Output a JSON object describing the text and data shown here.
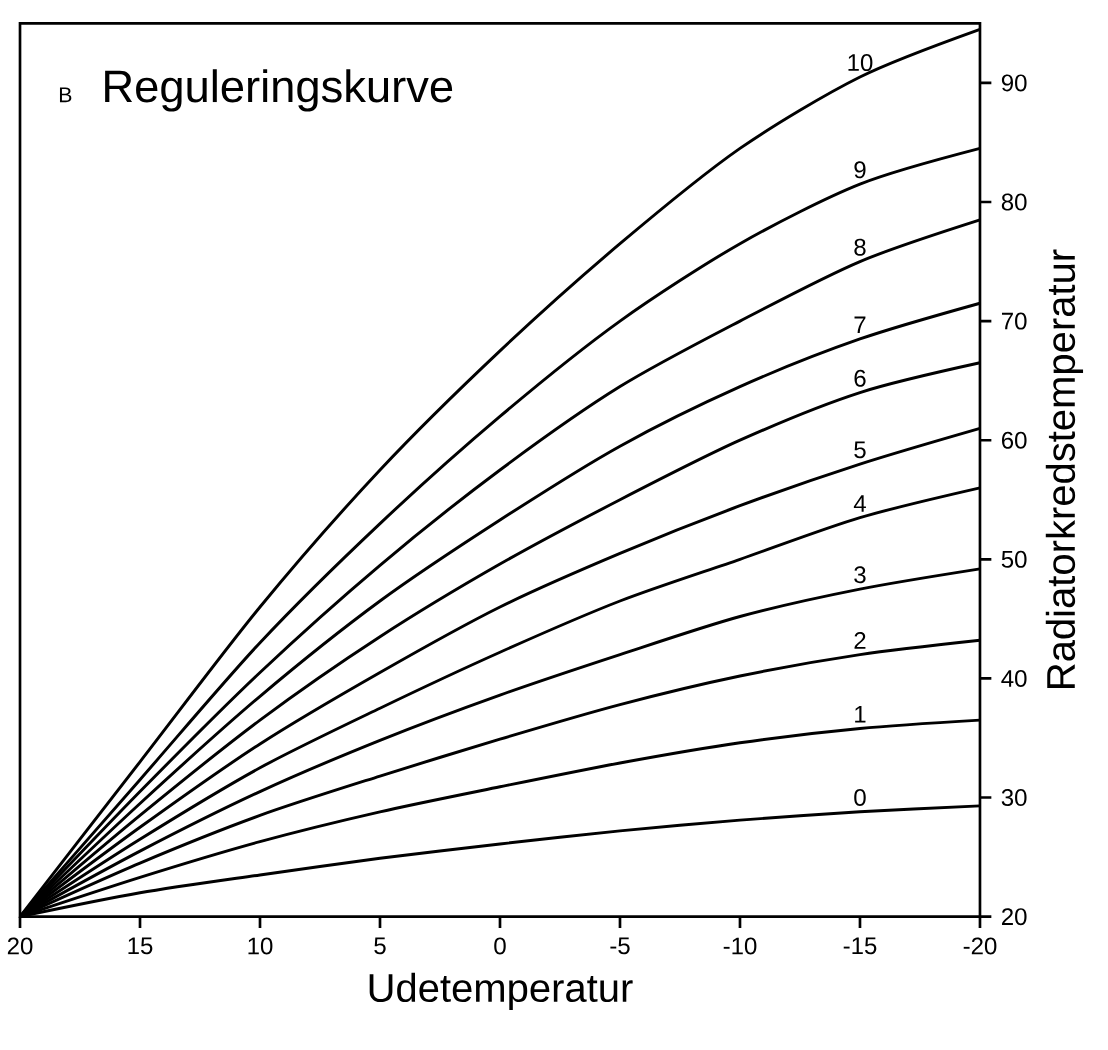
{
  "chart_data": {
    "type": "line",
    "title": "Reguleringskurve",
    "annotations": [
      "B"
    ],
    "xlabel": "Udetemperatur",
    "ylabel": "Radiatorkredstemperatur",
    "x": [
      20,
      15,
      10,
      5,
      0,
      -5,
      -10,
      -15,
      -20
    ],
    "xlim": [
      20,
      -20
    ],
    "xticks": [
      20,
      15,
      10,
      5,
      0,
      -5,
      -10,
      -15,
      -20
    ],
    "ylim": [
      20,
      95
    ],
    "yticks": [
      20,
      30,
      40,
      50,
      60,
      70,
      80,
      90
    ],
    "series": [
      {
        "name": "0",
        "color": "#000000",
        "values": [
          20,
          22,
          23.5,
          24.9,
          26.1,
          27.2,
          28.1,
          28.8,
          29.3
        ]
      },
      {
        "name": "1",
        "color": "#000000",
        "values": [
          20,
          23.3,
          26.3,
          28.8,
          30.9,
          32.9,
          34.6,
          35.8,
          36.5
        ]
      },
      {
        "name": "2",
        "color": "#000000",
        "values": [
          20,
          24.5,
          28.5,
          31.8,
          34.9,
          37.8,
          40.2,
          42,
          43.2
        ]
      },
      {
        "name": "3",
        "color": "#000000",
        "values": [
          20,
          25.5,
          30.5,
          34.8,
          38.6,
          42,
          45.2,
          47.5,
          49.2
        ]
      },
      {
        "name": "4",
        "color": "#000000",
        "values": [
          20,
          26.5,
          32.5,
          37.5,
          42.2,
          46.5,
          50,
          53.5,
          56
        ]
      },
      {
        "name": "5",
        "color": "#000000",
        "values": [
          20,
          27.5,
          34.5,
          40.5,
          46,
          50.5,
          54.5,
          58,
          61
        ]
      },
      {
        "name": "6",
        "color": "#000000",
        "values": [
          20,
          28.5,
          36.5,
          43.5,
          49.6,
          55,
          60,
          64,
          66.5
        ]
      },
      {
        "name": "7",
        "color": "#000000",
        "values": [
          20,
          29.5,
          38.5,
          46.5,
          53.3,
          59.5,
          64.5,
          68.5,
          71.5
        ]
      },
      {
        "name": "8",
        "color": "#000000",
        "values": [
          20,
          30.5,
          40.5,
          49.5,
          57.5,
          64.5,
          70,
          75,
          78.5
        ]
      },
      {
        "name": "9",
        "color": "#000000",
        "values": [
          20,
          31.5,
          43,
          53,
          62,
          70,
          76.5,
          81.5,
          84.5
        ]
      },
      {
        "name": "10",
        "color": "#000000",
        "values": [
          20,
          33,
          46,
          57.5,
          67.5,
          76.5,
          84.5,
          90.5,
          94.5
        ]
      }
    ]
  }
}
